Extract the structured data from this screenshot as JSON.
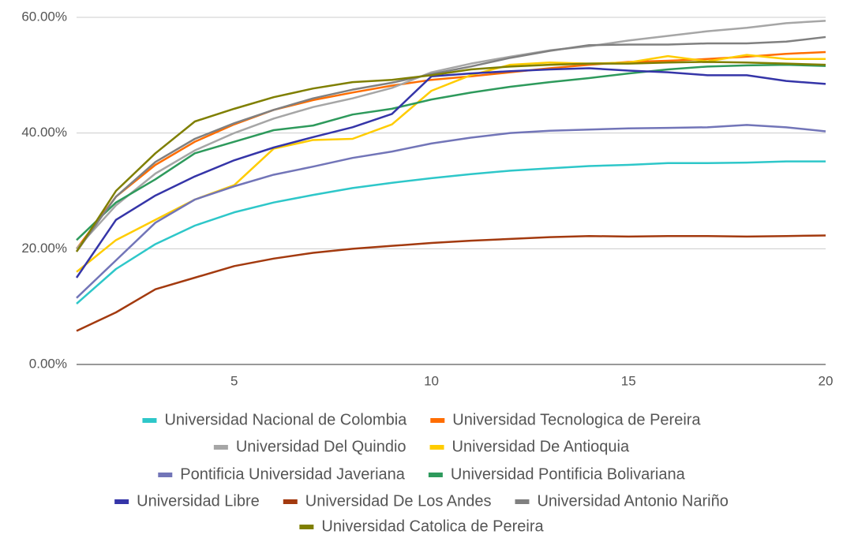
{
  "chart_data": {
    "type": "line",
    "x": [
      1,
      2,
      3,
      4,
      5,
      6,
      7,
      8,
      9,
      10,
      11,
      12,
      13,
      14,
      15,
      16,
      17,
      18,
      19,
      20
    ],
    "xlim": [
      1,
      20
    ],
    "xticks": [
      5,
      10,
      15,
      20
    ],
    "ylim": [
      0,
      60
    ],
    "yticks": [
      {
        "value": 0,
        "label": "0.00%"
      },
      {
        "value": 20,
        "label": "20.00%"
      },
      {
        "value": 40,
        "label": "40.00%"
      },
      {
        "value": 60,
        "label": "60.00%"
      }
    ],
    "grid": true,
    "series": [
      {
        "name": "Universidad Nacional de Colombia",
        "color": "#2ec7c9",
        "values": [
          10.5,
          16.5,
          20.8,
          24,
          26.3,
          28,
          29.3,
          30.5,
          31.4,
          32.2,
          32.9,
          33.5,
          33.9,
          34.3,
          34.5,
          34.8,
          34.8,
          34.9,
          35.1,
          35.1
        ]
      },
      {
        "name": "Universidad Tecnologica de Pereira",
        "color": "#ff6d00",
        "values": [
          20,
          29,
          34.5,
          38.5,
          41.5,
          44,
          45.7,
          47,
          48.2,
          49.2,
          49.8,
          50.5,
          51.2,
          51.8,
          52.3,
          52.5,
          52.8,
          53.2,
          53.7,
          54
        ]
      },
      {
        "name": "Universidad Del Quindio",
        "color": "#a6a6a6",
        "values": [
          20,
          27.5,
          33,
          37,
          40,
          42.5,
          44.5,
          46,
          47.8,
          50.5,
          52,
          53.2,
          54.3,
          55,
          56,
          56.8,
          57.6,
          58.2,
          59,
          59.4
        ]
      },
      {
        "name": "Universidad De Antioquia",
        "color": "#ffcc00",
        "values": [
          16,
          21.5,
          25,
          28.5,
          31,
          37.3,
          38.8,
          39,
          41.5,
          47.3,
          50,
          51.8,
          52.2,
          52,
          52.2,
          53.3,
          52.4,
          53.5,
          52.8,
          52.8
        ]
      },
      {
        "name": "Pontificia Universidad Javeriana",
        "color": "#7275b8",
        "values": [
          11.5,
          18,
          24.5,
          28.5,
          30.8,
          32.8,
          34.2,
          35.7,
          36.8,
          38.2,
          39.2,
          40,
          40.4,
          40.6,
          40.8,
          40.9,
          41,
          41.4,
          41,
          40.3
        ]
      },
      {
        "name": "Universidad Pontificia Bolivariana",
        "color": "#2e9a5c",
        "values": [
          21.5,
          28,
          32,
          36.5,
          38.5,
          40.5,
          41.3,
          43.2,
          44.2,
          45.8,
          47,
          48,
          48.8,
          49.5,
          50.3,
          51,
          51.5,
          51.7,
          51.8,
          51.6
        ]
      },
      {
        "name": "Universidad Libre",
        "color": "#3535a8",
        "values": [
          15,
          25,
          29.2,
          32.5,
          35.3,
          37.5,
          39.3,
          41,
          43.3,
          49.8,
          50.3,
          50.7,
          51,
          51.2,
          50.8,
          50.5,
          50,
          50,
          49,
          48.5
        ]
      },
      {
        "name": "Universidad De Los Andes",
        "color": "#a33a0f",
        "values": [
          5.8,
          9,
          13,
          15,
          17,
          18.3,
          19.3,
          20,
          20.5,
          21,
          21.4,
          21.7,
          22,
          22.2,
          22.1,
          22.2,
          22.2,
          22.1,
          22.2,
          22.3
        ]
      },
      {
        "name": "Universidad Antonio Nariño",
        "color": "#808080",
        "values": [
          19.5,
          29,
          35,
          39,
          41.7,
          44,
          46,
          47.5,
          48.7,
          50.2,
          51.5,
          53,
          54.2,
          55.2,
          55.3,
          55.3,
          55.5,
          55.5,
          55.8,
          56.6
        ]
      },
      {
        "name": "Universidad Catolica de Pereira",
        "color": "#7f7f00",
        "values": [
          19.5,
          30,
          36.5,
          42,
          44.2,
          46.2,
          47.7,
          48.8,
          49.2,
          50,
          51,
          51.5,
          51.8,
          52,
          52,
          52.2,
          52.3,
          52.2,
          52,
          51.8
        ]
      }
    ]
  }
}
